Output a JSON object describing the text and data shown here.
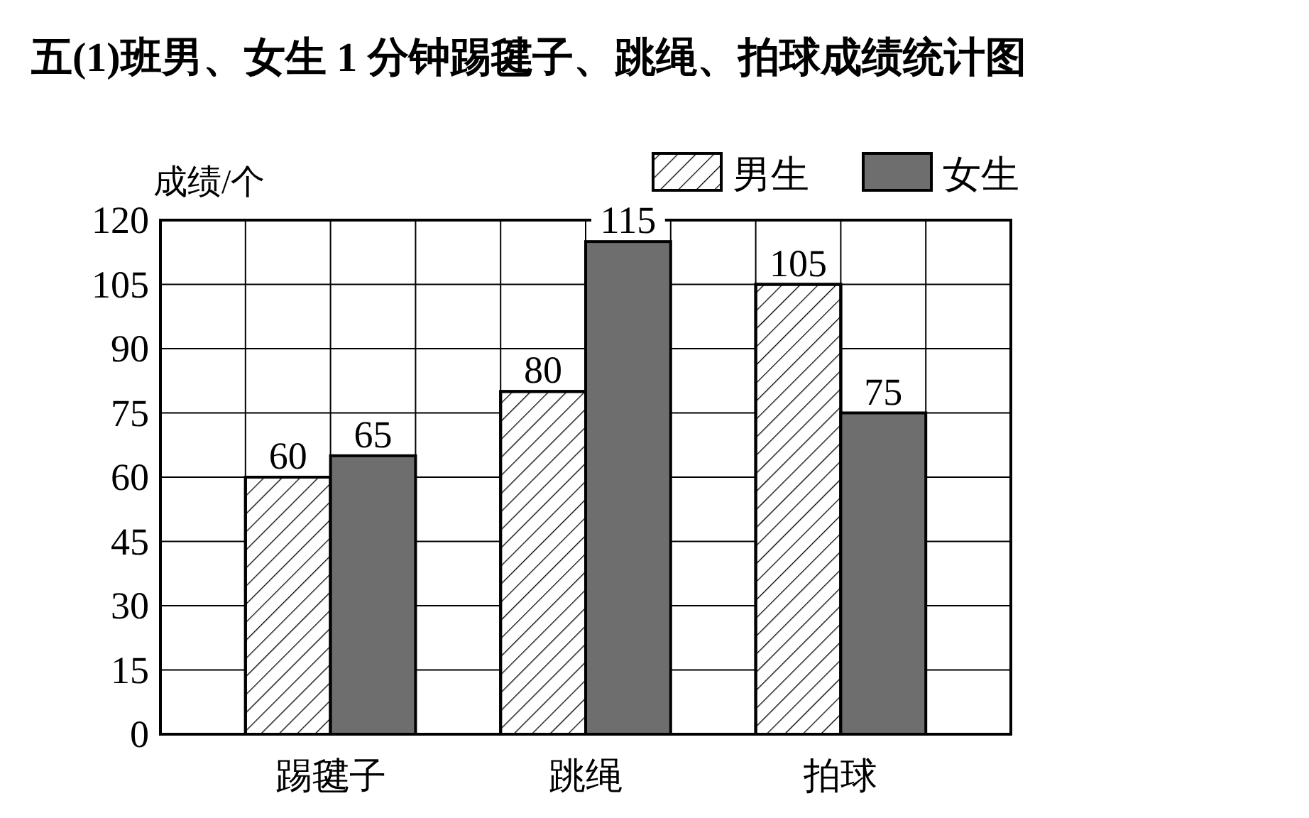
{
  "chart_data": {
    "type": "bar",
    "title": "五(1)班男、女生 1 分钟踢毽子、跳绳、拍球成绩统计图",
    "ylabel": "成绩/个",
    "categories": [
      "踢毽子",
      "跳绳",
      "拍球"
    ],
    "series": [
      {
        "name": "男生",
        "color": "#ffffff",
        "values": [
          60,
          80,
          105
        ]
      },
      {
        "name": "女生",
        "color": "#6e6e6e",
        "values": [
          65,
          115,
          75
        ]
      }
    ],
    "ylim": [
      0,
      120
    ],
    "yticks": [
      0,
      15,
      30,
      45,
      60,
      75,
      90,
      105,
      120
    ],
    "grid": true,
    "legend": "top right",
    "data_labels": true
  }
}
